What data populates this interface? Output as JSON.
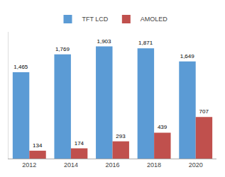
{
  "chart_data": {
    "type": "bar",
    "categories": [
      "2012",
      "2014",
      "2016",
      "2018",
      "2020"
    ],
    "series": [
      {
        "name": "TFT LCD",
        "color": "#5B9BD5",
        "values": [
          1465,
          1769,
          1903,
          1871,
          1649
        ],
        "value_labels": [
          "1,465",
          "1,769",
          "1,903",
          "1,871",
          "1,649"
        ]
      },
      {
        "name": "AMOLED",
        "color": "#C0504D",
        "values": [
          134,
          174,
          293,
          439,
          707
        ],
        "value_labels": [
          "134",
          "174",
          "293",
          "439",
          "707"
        ]
      }
    ],
    "ylim": [
      0,
      2150
    ],
    "grid": false,
    "legend": "top",
    "data_labels": true,
    "tick_labels": "x"
  }
}
